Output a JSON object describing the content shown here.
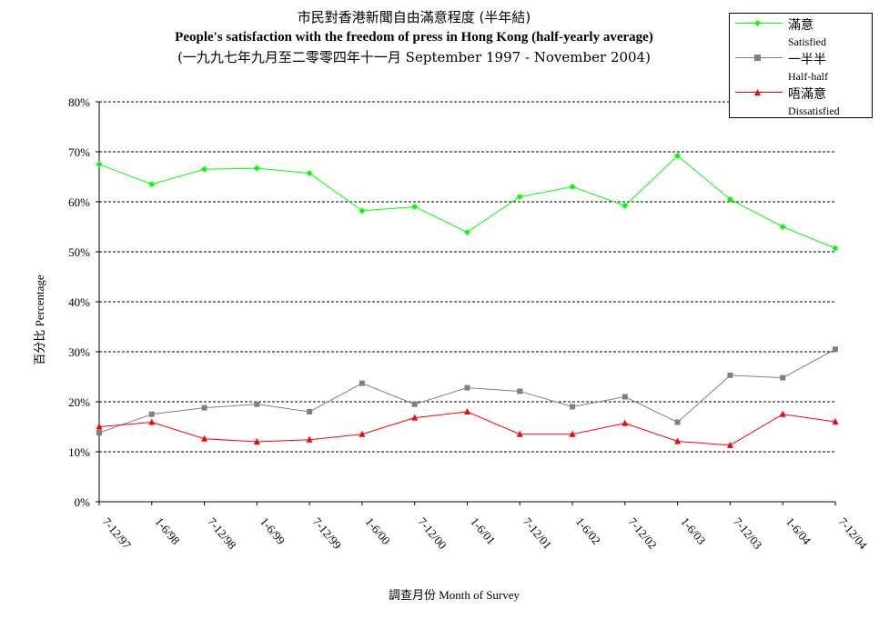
{
  "title": {
    "zh": "市民對香港新聞自由滿意程度 (半年結)",
    "en": "People's satisfaction with the freedom of press in Hong Kong (half-yearly average)",
    "period": "(一九九七年九月至二零零四年十一月 September 1997 - November 2004)"
  },
  "legend": [
    {
      "zh": "滿意",
      "en": "Satisfied",
      "color": "#00ff00",
      "marker": "diamond"
    },
    {
      "zh": "一半半",
      "en": "Half-half",
      "color": "#808080",
      "marker": "square"
    },
    {
      "zh": "唔滿意",
      "en": "Dissatisfied",
      "color": "#ff0000",
      "marker": "triangle"
    }
  ],
  "chart_data": {
    "type": "line",
    "title": "People's satisfaction with the freedom of press in Hong Kong (half-yearly average)",
    "xlabel": "調查月份 Month of Survey",
    "ylabel": "百分比 Percentage",
    "ylim": [
      0,
      80
    ],
    "yticks": [
      "0%",
      "10%",
      "20%",
      "30%",
      "40%",
      "50%",
      "60%",
      "70%",
      "80%"
    ],
    "grid": "horizontal dashed",
    "legend_position": "top-right",
    "categories": [
      "7-12/97",
      "1-6/98",
      "7-12/98",
      "1-6/99",
      "7-12/99",
      "1-6/00",
      "7-12/00",
      "1-6/01",
      "7-12/01",
      "1-6/02",
      "7-12/02",
      "1-6/03",
      "7-12/03",
      "1-6/04",
      "7-12/04"
    ],
    "series": [
      {
        "name": "滿意 Satisfied",
        "color": "#00ff00",
        "marker": "diamond",
        "values": [
          67.5,
          63.5,
          66.5,
          66.7,
          65.7,
          58.2,
          59.0,
          53.9,
          61.0,
          63.0,
          59.2,
          69.2,
          60.5,
          55.0,
          50.7
        ]
      },
      {
        "name": "一半半 Half-half",
        "color": "#808080",
        "marker": "square",
        "values": [
          13.8,
          17.5,
          18.8,
          19.5,
          18.0,
          23.7,
          19.5,
          22.8,
          22.1,
          19.0,
          21.0,
          15.9,
          25.3,
          24.8,
          30.5
        ]
      },
      {
        "name": "唔滿意 Dissatisfied",
        "color": "#ff0000",
        "marker": "triangle",
        "values": [
          15.0,
          15.9,
          12.6,
          12.0,
          12.4,
          13.5,
          16.8,
          18.0,
          13.5,
          13.5,
          15.7,
          12.1,
          11.3,
          17.5,
          16.0
        ]
      }
    ]
  }
}
